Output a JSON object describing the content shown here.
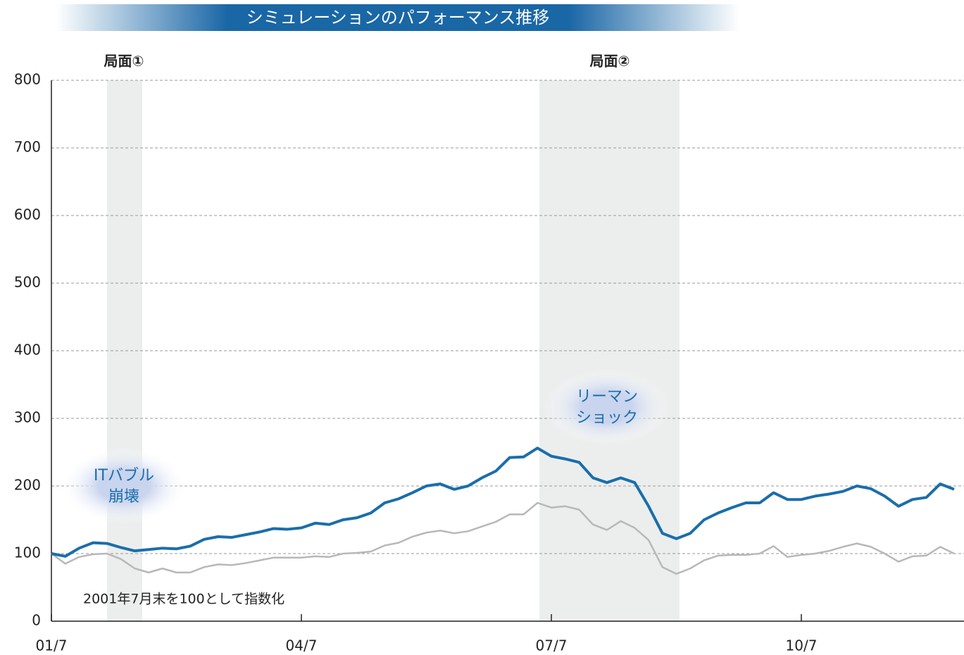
{
  "chart_data": {
    "type": "line",
    "title": "シミュレーションのパフォーマンス推移",
    "note": "2001年7月末を100として指数化",
    "phases": [
      "局面①",
      "局面②"
    ],
    "annotations": [
      [
        "ITバブル",
        "崩壊"
      ],
      [
        "リーマン",
        "ショック"
      ]
    ],
    "categories": [
      "01/7",
      null,
      null,
      null,
      null,
      null,
      null,
      null,
      null,
      null,
      null,
      null,
      null,
      null,
      null,
      null,
      null,
      null,
      "04/7",
      null,
      null,
      null,
      null,
      null,
      null,
      null,
      null,
      null,
      null,
      null,
      null,
      null,
      null,
      null,
      null,
      null,
      "07/7",
      null,
      null,
      null,
      null,
      null,
      null,
      null,
      null,
      null,
      null,
      null,
      null,
      null,
      null,
      null,
      null,
      null,
      "10/7",
      null,
      null,
      null,
      null,
      null,
      null,
      null,
      null,
      null,
      null,
      null
    ],
    "series": [
      {
        "color": "#1a6eab",
        "values": [
          100,
          96,
          108,
          116,
          115,
          109,
          104,
          106,
          108,
          107,
          111,
          121,
          125,
          124,
          128,
          132,
          137,
          136,
          138,
          145,
          143,
          150,
          153,
          160,
          175,
          181,
          190,
          200,
          203,
          195,
          200,
          212,
          222,
          242,
          243,
          256,
          244,
          240,
          235,
          212,
          205,
          212,
          205,
          170,
          130,
          122,
          130,
          150,
          160,
          168,
          175,
          175,
          190,
          180,
          180,
          185,
          188,
          192,
          200,
          196,
          185,
          170,
          180,
          183,
          203,
          195
        ]
      },
      {
        "color": "#b8b8b8",
        "values": [
          100,
          85,
          95,
          99,
          100,
          92,
          78,
          72,
          78,
          72,
          72,
          80,
          84,
          83,
          86,
          90,
          94,
          94,
          94,
          96,
          95,
          100,
          101,
          103,
          112,
          116,
          125,
          131,
          134,
          130,
          133,
          140,
          147,
          158,
          158,
          175,
          168,
          170,
          165,
          143,
          135,
          148,
          138,
          120,
          80,
          70,
          78,
          90,
          97,
          98,
          98,
          100,
          111,
          95,
          98,
          100,
          104,
          110,
          115,
          110,
          100,
          88,
          96,
          97,
          110,
          100
        ]
      }
    ],
    "ylim": [
      0,
      800
    ],
    "yticks": [
      0,
      100,
      200,
      300,
      400,
      500,
      600,
      700,
      800
    ],
    "grid": true
  }
}
